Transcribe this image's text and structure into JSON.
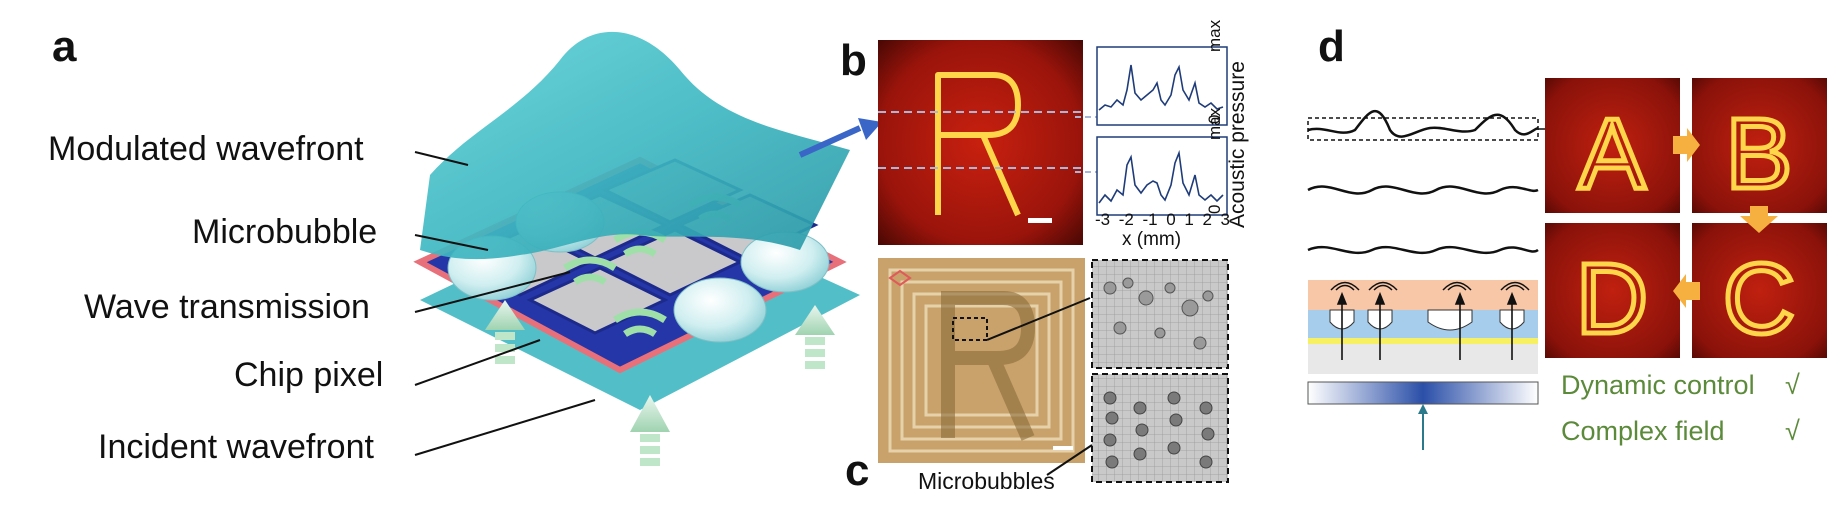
{
  "panel_a": {
    "letter": "a",
    "labels": {
      "modulated": "Modulated wavefront",
      "microbubble": "Microbubble",
      "transmission": "Wave transmission",
      "pixel": "Chip pixel",
      "incident": "Incident wavefront"
    }
  },
  "panel_b": {
    "letter": "b",
    "y_label": "Acoustic pressure",
    "y_max": "max",
    "y_zero": "0",
    "x_label": "x (mm)",
    "x_ticks": [
      "-3",
      "-2",
      "-1",
      "0",
      "1",
      "2",
      "3"
    ]
  },
  "panel_c": {
    "letter": "c",
    "microbubbles_label": "Microbubbles"
  },
  "panel_d": {
    "letter": "d",
    "images": [
      "A",
      "B",
      "D",
      "C"
    ],
    "dynamic_label": "Dynamic control",
    "complex_label": "Complex field",
    "check": "√"
  },
  "colors": {
    "teal": "#3fb8c2",
    "field_red": "#b01a10",
    "hologram_yellow": "#ffd54a",
    "arrow_orange": "#f6b040",
    "green_text": "#5b8a3a",
    "profile_blue": "#1f3c7a"
  }
}
